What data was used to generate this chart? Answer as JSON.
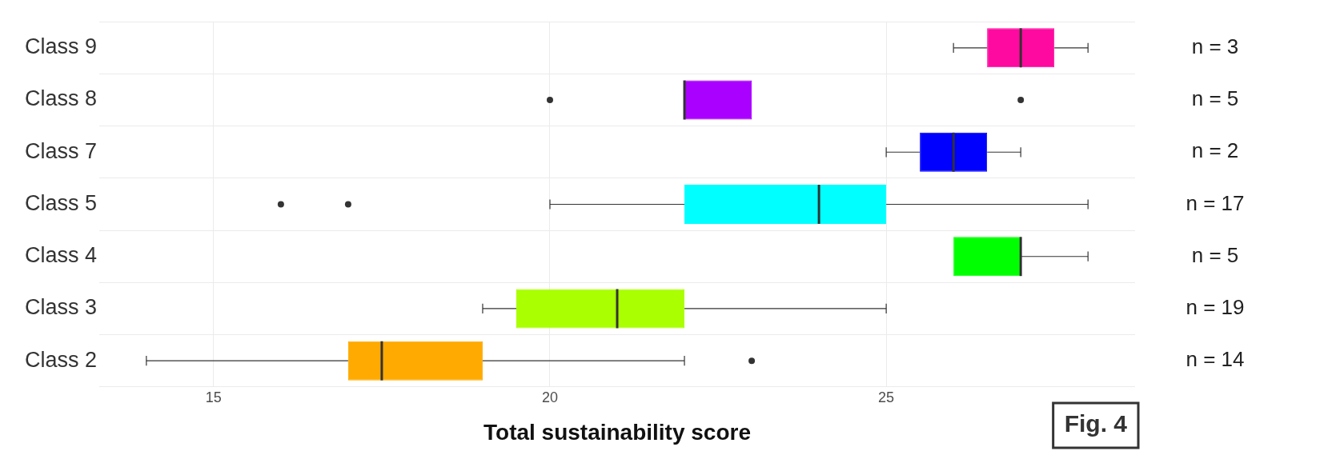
{
  "chart_data": {
    "type": "box",
    "orientation": "horizontal",
    "xlabel": "Total sustainability score",
    "categories": [
      "Class 9",
      "Class 8",
      "Class 7",
      "Class 5",
      "Class 4",
      "Class 3",
      "Class 2"
    ],
    "colors": [
      "#ff0aa0",
      "#aa00ff",
      "#0000ff",
      "#00ffff",
      "#00ff00",
      "#aaff00",
      "#ffaa00"
    ],
    "boxes": [
      {
        "low": 26,
        "q1": 26.5,
        "median": 27,
        "q3": 27.5,
        "high": 28
      },
      {
        "low": 22,
        "q1": 22,
        "median": 22,
        "q3": 23,
        "high": 23,
        "outliers": [
          20,
          27
        ]
      },
      {
        "low": 25,
        "q1": 25.5,
        "median": 26,
        "q3": 26.5,
        "high": 27
      },
      {
        "low": 20,
        "q1": 22,
        "median": 24,
        "q3": 25,
        "high": 28,
        "outliers": [
          16,
          17
        ]
      },
      {
        "low": 26,
        "q1": 26,
        "median": 27,
        "q3": 27,
        "high": 28
      },
      {
        "low": 19,
        "q1": 19.5,
        "median": 21,
        "q3": 22,
        "high": 25
      },
      {
        "low": 14,
        "q1": 17,
        "median": 17.5,
        "q3": 19,
        "high": 22,
        "outliers": [
          23
        ]
      }
    ],
    "xlim": [
      13.3,
      28.7
    ],
    "xticks": [
      15,
      20,
      25
    ],
    "grid": true,
    "annotations": [
      "n = 3",
      "n = 5",
      "n = 2",
      "n = 17",
      "n = 5",
      "n = 19",
      "n = 14",
      "Fig. 4"
    ]
  }
}
